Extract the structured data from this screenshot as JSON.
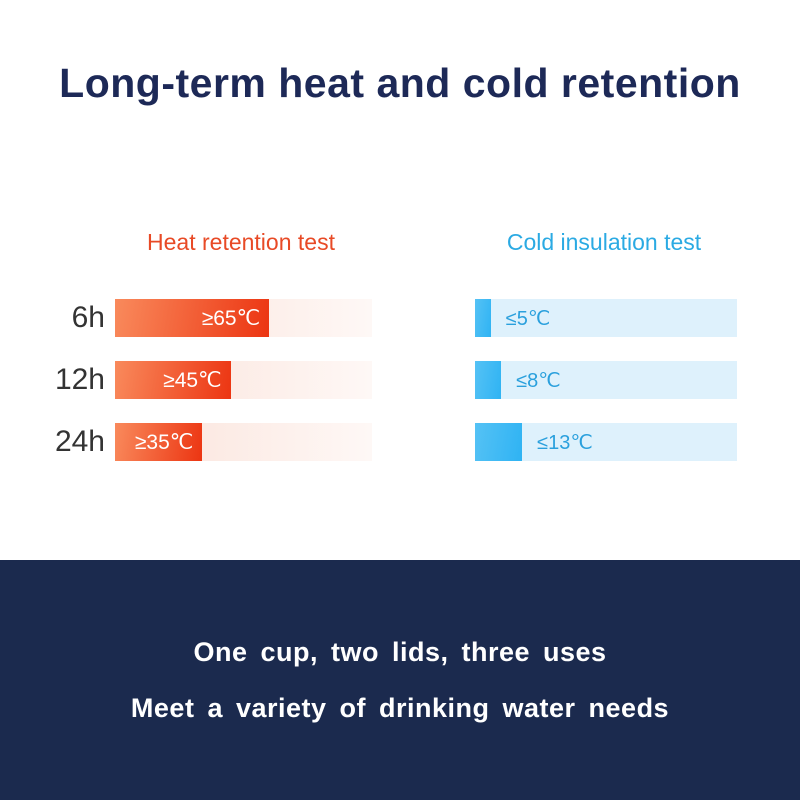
{
  "page": {
    "title": "Long-term heat and cold retention"
  },
  "heat": {
    "header": "Heat retention test",
    "rows": [
      {
        "label": "6h",
        "value": "≥65℃",
        "fill_pct": 60
      },
      {
        "label": "12h",
        "value": "≥45℃",
        "fill_pct": 45
      },
      {
        "label": "24h",
        "value": "≥35℃",
        "fill_pct": 34
      }
    ]
  },
  "cold": {
    "header": "Cold insulation test",
    "rows": [
      {
        "label": "≤5℃",
        "fill_pct": 6
      },
      {
        "label": "≤8℃",
        "fill_pct": 10
      },
      {
        "label": "≤13℃",
        "fill_pct": 18
      }
    ]
  },
  "footer": {
    "line1": "One cup, two lids, three uses",
    "line2": "Meet a variety of drinking water needs"
  },
  "colors": {
    "title_navy": "#1d2957",
    "heat_accent": "#e84a26",
    "heat_fill_start": "#f98a5c",
    "heat_fill_end": "#ec3512",
    "heat_track": "#fbe9e2",
    "cold_accent": "#2baae3",
    "cold_fill": "#2fb3f3",
    "cold_track": "#def1fc",
    "footer_bg": "#1b2a4e",
    "text_dark": "#333333"
  },
  "chart_data": [
    {
      "type": "bar",
      "title": "Heat retention test",
      "orientation": "horizontal",
      "categories": [
        "6h",
        "12h",
        "24h"
      ],
      "values": [
        65,
        45,
        35
      ],
      "value_labels": [
        "≥65℃",
        "≥45℃",
        "≥35℃"
      ],
      "unit": "℃",
      "legend_position": "none",
      "grid": false
    },
    {
      "type": "bar",
      "title": "Cold insulation test",
      "orientation": "horizontal",
      "categories": [
        "6h",
        "12h",
        "24h"
      ],
      "values": [
        5,
        8,
        13
      ],
      "value_labels": [
        "≤5℃",
        "≤8℃",
        "≤13℃"
      ],
      "unit": "℃",
      "legend_position": "none",
      "grid": false
    }
  ]
}
